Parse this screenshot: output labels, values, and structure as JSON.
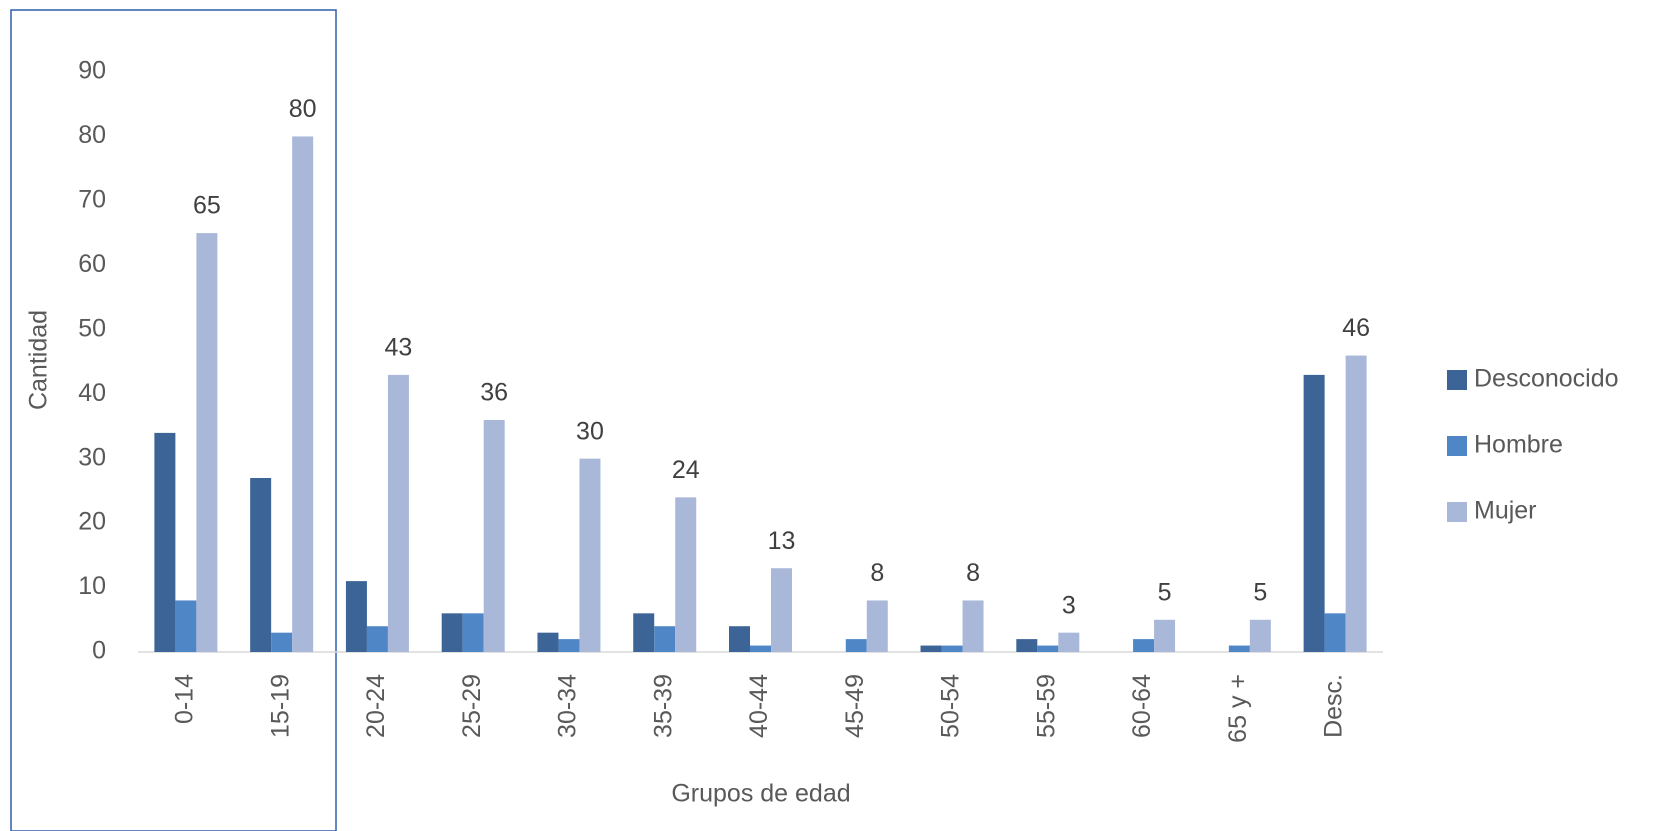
{
  "chart_data": {
    "type": "bar",
    "x_label": "Grupos de edad",
    "y_label": "Cantidad",
    "categories": [
      "0-14",
      "15-19",
      "20-24",
      "25-29",
      "30-34",
      "35-39",
      "40-44",
      "45-49",
      "50-54",
      "55-59",
      "60-64",
      "65 y +",
      "Desc."
    ],
    "series": [
      {
        "name": "Desconocido",
        "color": "#3c6496",
        "values": [
          34,
          27,
          11,
          6,
          3,
          6,
          4,
          0,
          1,
          2,
          0,
          0,
          43
        ]
      },
      {
        "name": "Hombre",
        "color": "#4f86c6",
        "values": [
          8,
          3,
          4,
          6,
          2,
          4,
          1,
          2,
          1,
          1,
          2,
          1,
          6
        ]
      },
      {
        "name": "Mujer",
        "color": "#a9b8d8",
        "values": [
          65,
          80,
          43,
          36,
          30,
          24,
          13,
          8,
          8,
          3,
          5,
          5,
          46
        ]
      }
    ],
    "labeled_series": 2,
    "ylim": [
      0,
      90
    ],
    "yticks": [
      0,
      10,
      20,
      30,
      40,
      50,
      60,
      70,
      80,
      90
    ],
    "legend": "right"
  }
}
